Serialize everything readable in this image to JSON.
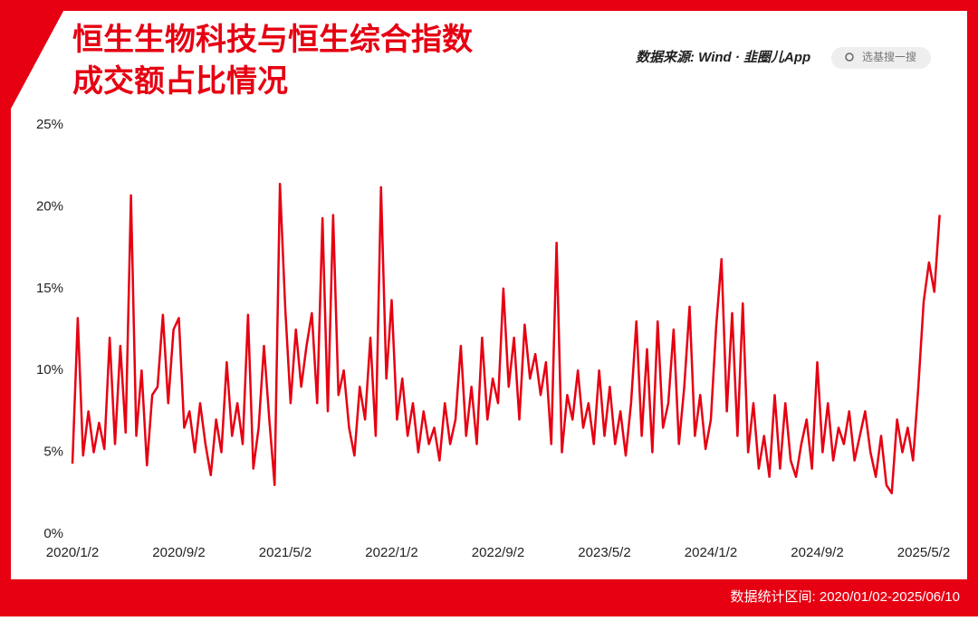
{
  "header": {
    "title_line1": "恒生生物科技与恒生综合指数",
    "title_line2": "成交额占比情况",
    "source": "数据来源: Wind · 韭圈儿App",
    "search": "选基搜一搜"
  },
  "footer": {
    "range": "数据统计区间: 2020/01/02-2025/06/10"
  },
  "chart_data": {
    "type": "line",
    "categories": [
      "2020/1/2",
      null,
      null,
      null,
      null,
      null,
      null,
      null,
      null,
      null,
      null,
      null,
      null,
      null,
      null,
      null,
      null,
      null,
      null,
      null,
      "2020/9/2",
      null,
      null,
      null,
      null,
      null,
      null,
      null,
      null,
      null,
      null,
      null,
      null,
      null,
      null,
      null,
      null,
      null,
      null,
      null,
      "2021/5/2",
      null,
      null,
      null,
      null,
      null,
      null,
      null,
      null,
      null,
      null,
      null,
      null,
      null,
      null,
      null,
      null,
      null,
      null,
      null,
      "2022/1/2",
      null,
      null,
      null,
      null,
      null,
      null,
      null,
      null,
      null,
      null,
      null,
      null,
      null,
      null,
      null,
      null,
      null,
      null,
      null,
      "2022/9/2",
      null,
      null,
      null,
      null,
      null,
      null,
      null,
      null,
      null,
      null,
      null,
      null,
      null,
      null,
      null,
      null,
      null,
      null,
      null,
      "2023/5/2",
      null,
      null,
      null,
      null,
      null,
      null,
      null,
      null,
      null,
      null,
      null,
      null,
      null,
      null,
      null,
      null,
      null,
      null,
      null,
      "2024/1/2",
      null,
      null,
      null,
      null,
      null,
      null,
      null,
      null,
      null,
      null,
      null,
      null,
      null,
      null,
      null,
      null,
      null,
      null,
      null,
      "2024/9/2",
      null,
      null,
      null,
      null,
      null,
      null,
      null,
      null,
      null,
      null,
      null,
      null,
      null,
      null,
      null,
      null,
      null,
      null,
      null,
      "2025/5/2",
      null,
      null,
      null
    ],
    "series": [
      {
        "color": "#e60012",
        "values": [
          4.3,
          13.2,
          4.8,
          7.5,
          5.0,
          6.8,
          5.2,
          12.0,
          5.5,
          11.5,
          6.2,
          20.7,
          6.0,
          10.0,
          4.2,
          8.5,
          9.0,
          13.4,
          8.0,
          12.5,
          13.2,
          6.5,
          7.5,
          5.0,
          8.0,
          5.5,
          3.6,
          7.0,
          5.0,
          10.5,
          6.0,
          8.0,
          5.5,
          13.4,
          4.0,
          6.5,
          11.5,
          7.0,
          3.0,
          21.4,
          13.8,
          8.0,
          12.5,
          9.0,
          11.5,
          13.5,
          8.0,
          19.3,
          7.5,
          19.5,
          8.5,
          10.0,
          6.5,
          4.8,
          9.0,
          7.0,
          12.0,
          6.0,
          21.2,
          9.5,
          14.3,
          7.0,
          9.5,
          6.0,
          8.0,
          5.0,
          7.5,
          5.5,
          6.5,
          4.5,
          8.0,
          5.5,
          7.0,
          11.5,
          6.0,
          9.0,
          5.5,
          12.0,
          7.0,
          9.5,
          8.0,
          15.0,
          9.0,
          12.0,
          7.0,
          12.8,
          9.5,
          11.0,
          8.5,
          10.5,
          5.5,
          17.8,
          5.0,
          8.5,
          7.0,
          10.0,
          6.5,
          8.0,
          5.5,
          10.0,
          6.0,
          9.0,
          5.5,
          7.5,
          4.8,
          8.0,
          13.0,
          6.0,
          11.3,
          5.0,
          13.0,
          6.5,
          8.0,
          12.5,
          5.5,
          9.0,
          13.9,
          6.0,
          8.5,
          5.2,
          7.0,
          12.7,
          16.8,
          7.5,
          13.5,
          6.0,
          14.1,
          5.0,
          8.0,
          4.0,
          6.0,
          3.5,
          8.5,
          4.0,
          8.0,
          4.5,
          3.5,
          5.5,
          7.0,
          4.0,
          10.5,
          5.0,
          8.0,
          4.5,
          6.5,
          5.5,
          7.5,
          4.5,
          6.0,
          7.5,
          5.0,
          3.5,
          6.0,
          3.0,
          2.5,
          7.0,
          5.0,
          6.5,
          4.5,
          9.0,
          14.2,
          16.6,
          14.8,
          19.5
        ]
      }
    ],
    "ylim": [
      0,
      25
    ],
    "yticks": [
      {
        "value": 0,
        "label": "0%"
      },
      {
        "value": 5,
        "label": "5%"
      },
      {
        "value": 10,
        "label": "10%"
      },
      {
        "value": 15,
        "label": "15%"
      },
      {
        "value": 20,
        "label": "20%"
      },
      {
        "value": 25,
        "label": "25%"
      }
    ]
  }
}
